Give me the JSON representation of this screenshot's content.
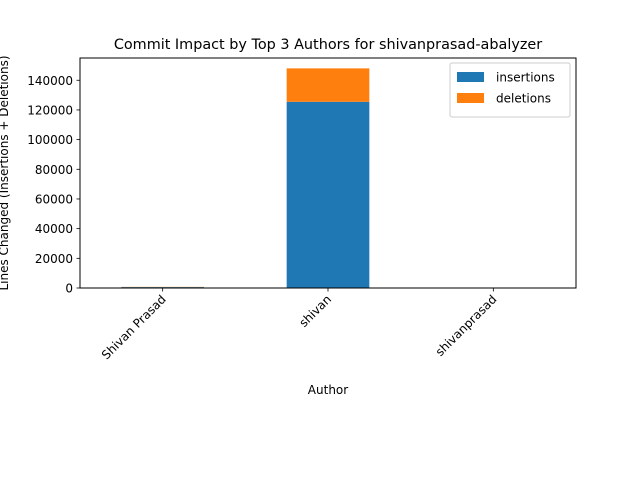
{
  "chart_data": {
    "type": "bar",
    "stacked": true,
    "title": "Commit Impact by Top 3 Authors for shivanprasad-abalyzer",
    "xlabel": "Author",
    "ylabel": "Lines Changed (Insertions + Deletions)",
    "categories": [
      "Shivan Prasad",
      "shivan",
      "shivanprasad"
    ],
    "series": [
      {
        "name": "insertions",
        "color": "#1f77b4",
        "values": [
          600,
          125500,
          40
        ]
      },
      {
        "name": "deletions",
        "color": "#ff7f0e",
        "values": [
          150,
          22500,
          10
        ]
      }
    ],
    "ylim": [
      0,
      155000
    ],
    "yticks": [
      0,
      20000,
      40000,
      60000,
      80000,
      100000,
      120000,
      140000
    ],
    "grid": false,
    "legend": "top-right"
  }
}
